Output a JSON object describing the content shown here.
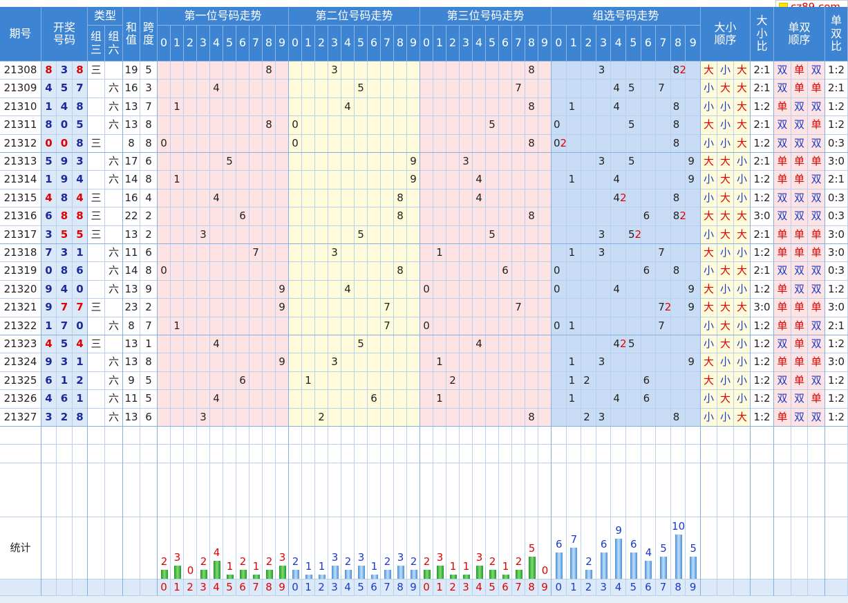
{
  "logo": "cz89.com",
  "header": {
    "issue": "期号",
    "draw": "开奖号码",
    "type": "类型",
    "type3": "组三",
    "type6": "组六",
    "sum": "和值",
    "span": "跨度",
    "sections": [
      "第一位号码走势",
      "第二位号码走势",
      "第三位号码走势",
      "组选号码走势"
    ],
    "digits": [
      0,
      1,
      2,
      3,
      4,
      5,
      6,
      7,
      8,
      9
    ],
    "size_order": "大小顺序",
    "size_ratio": "大小比",
    "parity_order": "单双顺序",
    "parity_ratio": "单双比"
  },
  "rows": [
    {
      "issue": 21308,
      "draw": [
        8,
        3,
        8
      ],
      "type3": "三",
      "sum": 19,
      "span": 5,
      "repeat": 2,
      "size": [
        "大",
        "小",
        "大"
      ],
      "size_ratio": "2:1",
      "parity": [
        "双",
        "单",
        "双"
      ],
      "parity_ratio": "1:2"
    },
    {
      "issue": 21309,
      "draw": [
        4,
        5,
        7
      ],
      "type6": "六",
      "sum": 16,
      "span": 3,
      "size": [
        "小",
        "大",
        "大"
      ],
      "size_ratio": "2:1",
      "parity": [
        "双",
        "单",
        "单"
      ],
      "parity_ratio": "2:1"
    },
    {
      "issue": 21310,
      "draw": [
        1,
        4,
        8
      ],
      "type6": "六",
      "sum": 13,
      "span": 7,
      "size": [
        "小",
        "小",
        "大"
      ],
      "size_ratio": "1:2",
      "parity": [
        "单",
        "双",
        "双"
      ],
      "parity_ratio": "1:2"
    },
    {
      "issue": 21311,
      "draw": [
        8,
        0,
        5
      ],
      "type6": "六",
      "sum": 13,
      "span": 8,
      "size": [
        "大",
        "小",
        "大"
      ],
      "size_ratio": "2:1",
      "parity": [
        "双",
        "双",
        "单"
      ],
      "parity_ratio": "1:2"
    },
    {
      "issue": 21312,
      "draw": [
        0,
        0,
        8
      ],
      "type3": "三",
      "sum": 8,
      "span": 8,
      "repeat": 2,
      "size": [
        "小",
        "小",
        "大"
      ],
      "size_ratio": "1:2",
      "parity": [
        "双",
        "双",
        "双"
      ],
      "parity_ratio": "0:3"
    },
    {
      "issue": 21313,
      "draw": [
        5,
        9,
        3
      ],
      "type6": "六",
      "sum": 17,
      "span": 6,
      "size": [
        "大",
        "大",
        "小"
      ],
      "size_ratio": "2:1",
      "parity": [
        "单",
        "单",
        "单"
      ],
      "parity_ratio": "3:0"
    },
    {
      "issue": 21314,
      "draw": [
        1,
        9,
        4
      ],
      "type6": "六",
      "sum": 14,
      "span": 8,
      "size": [
        "小",
        "大",
        "小"
      ],
      "size_ratio": "1:2",
      "parity": [
        "单",
        "单",
        "双"
      ],
      "parity_ratio": "2:1"
    },
    {
      "issue": 21315,
      "draw": [
        4,
        8,
        4
      ],
      "type3": "三",
      "sum": 16,
      "span": 4,
      "repeat": 2,
      "size": [
        "小",
        "大",
        "小"
      ],
      "size_ratio": "1:2",
      "parity": [
        "双",
        "双",
        "双"
      ],
      "parity_ratio": "0:3"
    },
    {
      "issue": 21316,
      "draw": [
        6,
        8,
        8
      ],
      "type3": "三",
      "sum": 22,
      "span": 2,
      "repeat": 2,
      "size": [
        "大",
        "大",
        "大"
      ],
      "size_ratio": "3:0",
      "parity": [
        "双",
        "双",
        "双"
      ],
      "parity_ratio": "0:3"
    },
    {
      "issue": 21317,
      "draw": [
        3,
        5,
        5
      ],
      "type3": "三",
      "sum": 13,
      "span": 2,
      "repeat": 2,
      "size": [
        "小",
        "大",
        "大"
      ],
      "size_ratio": "2:1",
      "parity": [
        "单",
        "单",
        "单"
      ],
      "parity_ratio": "3:0"
    },
    {
      "issue": 21318,
      "draw": [
        7,
        3,
        1
      ],
      "type6": "六",
      "sum": 11,
      "span": 6,
      "size": [
        "大",
        "小",
        "小"
      ],
      "size_ratio": "1:2",
      "parity": [
        "单",
        "单",
        "单"
      ],
      "parity_ratio": "3:0"
    },
    {
      "issue": 21319,
      "draw": [
        0,
        8,
        6
      ],
      "type6": "六",
      "sum": 14,
      "span": 8,
      "size": [
        "小",
        "大",
        "大"
      ],
      "size_ratio": "2:1",
      "parity": [
        "双",
        "双",
        "双"
      ],
      "parity_ratio": "0:3"
    },
    {
      "issue": 21320,
      "draw": [
        9,
        4,
        0
      ],
      "type6": "六",
      "sum": 13,
      "span": 9,
      "size": [
        "大",
        "小",
        "小"
      ],
      "size_ratio": "1:2",
      "parity": [
        "单",
        "双",
        "双"
      ],
      "parity_ratio": "1:2"
    },
    {
      "issue": 21321,
      "draw": [
        9,
        7,
        7
      ],
      "type3": "三",
      "sum": 23,
      "span": 2,
      "repeat": 2,
      "size": [
        "大",
        "大",
        "大"
      ],
      "size_ratio": "3:0",
      "parity": [
        "单",
        "单",
        "单"
      ],
      "parity_ratio": "3:0"
    },
    {
      "issue": 21322,
      "draw": [
        1,
        7,
        0
      ],
      "type6": "六",
      "sum": 8,
      "span": 7,
      "size": [
        "小",
        "大",
        "小"
      ],
      "size_ratio": "1:2",
      "parity": [
        "单",
        "单",
        "双"
      ],
      "parity_ratio": "2:1"
    },
    {
      "issue": 21323,
      "draw": [
        4,
        5,
        4
      ],
      "type3": "三",
      "sum": 13,
      "span": 1,
      "repeat": 2,
      "size": [
        "小",
        "大",
        "小"
      ],
      "size_ratio": "1:2",
      "parity": [
        "双",
        "单",
        "双"
      ],
      "parity_ratio": "1:2"
    },
    {
      "issue": 21324,
      "draw": [
        9,
        3,
        1
      ],
      "type6": "六",
      "sum": 13,
      "span": 8,
      "size": [
        "大",
        "小",
        "小"
      ],
      "size_ratio": "1:2",
      "parity": [
        "单",
        "单",
        "单"
      ],
      "parity_ratio": "3:0"
    },
    {
      "issue": 21325,
      "draw": [
        6,
        1,
        2
      ],
      "type6": "六",
      "sum": 9,
      "span": 5,
      "size": [
        "大",
        "小",
        "小"
      ],
      "size_ratio": "1:2",
      "parity": [
        "双",
        "单",
        "双"
      ],
      "parity_ratio": "1:2"
    },
    {
      "issue": 21326,
      "draw": [
        4,
        6,
        1
      ],
      "type6": "六",
      "sum": 11,
      "span": 5,
      "size": [
        "小",
        "大",
        "小"
      ],
      "size_ratio": "1:2",
      "parity": [
        "双",
        "双",
        "单"
      ],
      "parity_ratio": "1:2"
    },
    {
      "issue": 21327,
      "draw": [
        3,
        2,
        8
      ],
      "type6": "六",
      "sum": 13,
      "span": 6,
      "size": [
        "小",
        "小",
        "大"
      ],
      "size_ratio": "1:2",
      "parity": [
        "单",
        "双",
        "双"
      ],
      "parity_ratio": "1:2"
    }
  ],
  "stats": {
    "label": "统计",
    "counts": [
      [
        2,
        3,
        0,
        2,
        4,
        1,
        2,
        1,
        2,
        3
      ],
      [
        2,
        1,
        1,
        3,
        2,
        3,
        1,
        2,
        3,
        2
      ],
      [
        2,
        3,
        1,
        1,
        3,
        2,
        1,
        2,
        5,
        0
      ],
      [
        6,
        7,
        2,
        6,
        9,
        6,
        4,
        5,
        10,
        5
      ]
    ]
  }
}
